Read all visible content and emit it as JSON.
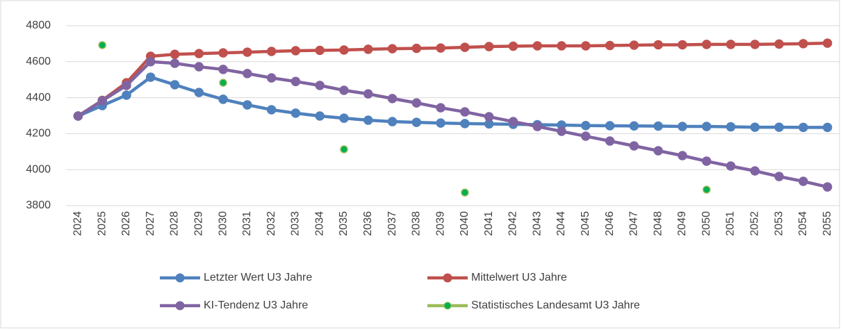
{
  "chart_data": {
    "type": "line",
    "categories": [
      "2024",
      "2025",
      "2026",
      "2027",
      "2028",
      "2029",
      "2030",
      "2031",
      "2032",
      "2033",
      "2034",
      "2035",
      "2036",
      "2037",
      "2038",
      "2039",
      "2040",
      "2041",
      "2042",
      "2043",
      "2044",
      "2045",
      "2046",
      "2047",
      "2048",
      "2049",
      "2050",
      "2051",
      "2052",
      "2053",
      "2054",
      "2055"
    ],
    "series": [
      {
        "name": "Letzter Wert  U3 Jahre",
        "color": "#4f81bd",
        "style": "line",
        "values": [
          4298,
          4356,
          4414,
          4514,
          4472,
          4429,
          4391,
          4360,
          4333,
          4314,
          4298,
          4286,
          4275,
          4267,
          4263,
          4259,
          4256,
          4254,
          4252,
          4250,
          4248,
          4245,
          4244,
          4243,
          4242,
          4240,
          4240,
          4238,
          4236,
          4236,
          4235,
          4235
        ]
      },
      {
        "name": "Mittelwert  U3 Jahre",
        "color": "#c0504d",
        "style": "line",
        "values": [
          4298,
          4385,
          4483,
          4630,
          4641,
          4645,
          4649,
          4653,
          4657,
          4661,
          4663,
          4665,
          4669,
          4672,
          4674,
          4676,
          4680,
          4684,
          4686,
          4688,
          4688,
          4688,
          4690,
          4692,
          4694,
          4694,
          4696,
          4696,
          4696,
          4698,
          4700,
          4703
        ]
      },
      {
        "name": "KI-Tendenz U3 Jahre",
        "color": "#8064a2",
        "style": "line",
        "values": [
          4298,
          4383,
          4468,
          4600,
          4591,
          4572,
          4557,
          4534,
          4510,
          4490,
          4468,
          4441,
          4421,
          4395,
          4371,
          4344,
          4321,
          4294,
          4267,
          4240,
          4213,
          4186,
          4159,
          4132,
          4105,
          4078,
          4047,
          4020,
          3993,
          3962,
          3935,
          3904
        ]
      },
      {
        "name": "Statistisches Landesamt U3 Jahre",
        "color": "#00b050",
        "style": "markers",
        "values": [
          null,
          4692,
          null,
          null,
          null,
          null,
          4483,
          null,
          null,
          null,
          null,
          4113,
          null,
          null,
          null,
          null,
          3873,
          null,
          null,
          null,
          null,
          null,
          null,
          null,
          null,
          null,
          3889,
          null,
          null,
          null,
          null,
          null
        ]
      }
    ],
    "ylim": [
      3800,
      4800
    ],
    "yticks": [
      3800,
      4000,
      4200,
      4400,
      4600,
      4800
    ],
    "grid": true,
    "legend": "bottom"
  }
}
